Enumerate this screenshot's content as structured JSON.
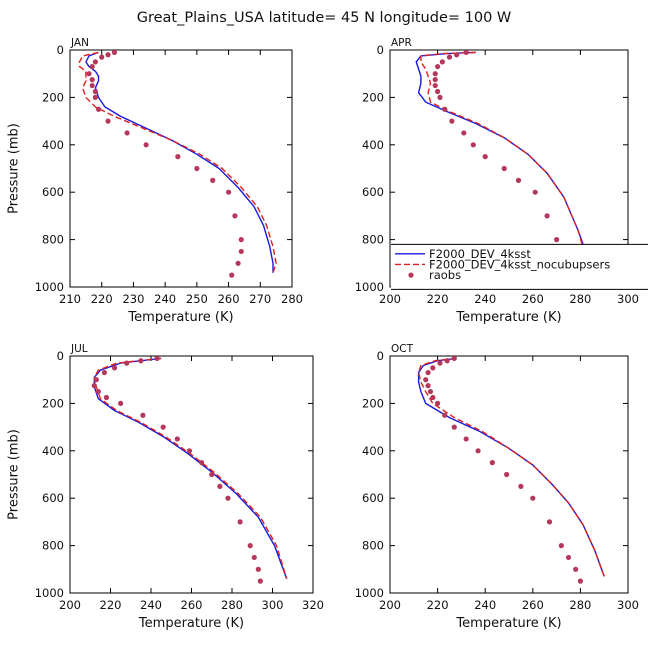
{
  "figure": {
    "title": "Great_Plains_USA  latitude= 45 N longitude= 100 W"
  },
  "colors": {
    "model": "#1a1ae0",
    "model_nocubup": "#e0201c",
    "obs": "#b5375a"
  },
  "chart_data": [
    {
      "type": "line",
      "panel": "JAN",
      "xlabel": "Temperature (K)",
      "ylabel": "Pressure (mb)",
      "xlim": [
        210,
        280
      ],
      "ylim": [
        1000,
        0
      ],
      "xticks": [
        210,
        220,
        230,
        240,
        250,
        260,
        270,
        280
      ],
      "yticks": [
        0,
        200,
        400,
        600,
        800,
        1000
      ],
      "series": [
        {
          "name": "F2000_DEV_4ksst",
          "style": "solid",
          "x": [
            219,
            216,
            215,
            216,
            218,
            219,
            219,
            218,
            219,
            221,
            226,
            234,
            242,
            250,
            257,
            263,
            268,
            271,
            273,
            274,
            274
          ],
          "y": [
            10,
            25,
            50,
            70,
            90,
            110,
            130,
            160,
            200,
            240,
            280,
            330,
            380,
            440,
            500,
            580,
            660,
            740,
            830,
            900,
            940
          ]
        },
        {
          "name": "F2000_DEV_4ksst_nocubupsers",
          "style": "dashed",
          "x": [
            219,
            214,
            213,
            213,
            215,
            215,
            215,
            214,
            215,
            218,
            224,
            233,
            242,
            251,
            258,
            264,
            269,
            272,
            274,
            275,
            274
          ],
          "y": [
            10,
            25,
            50,
            70,
            90,
            110,
            130,
            160,
            200,
            240,
            280,
            330,
            380,
            440,
            500,
            580,
            660,
            740,
            830,
            900,
            940
          ]
        },
        {
          "name": "raobs",
          "style": "dots",
          "x": [
            224,
            222,
            220,
            218,
            217,
            216,
            217,
            217,
            218,
            218,
            219,
            222,
            228,
            234,
            244,
            250,
            255,
            260,
            262,
            264,
            264,
            263,
            261
          ],
          "y": [
            10,
            20,
            30,
            50,
            70,
            100,
            125,
            150,
            175,
            200,
            250,
            300,
            350,
            400,
            450,
            500,
            550,
            600,
            700,
            800,
            850,
            900,
            950
          ]
        }
      ]
    },
    {
      "type": "line",
      "panel": "APR",
      "xlabel": "Temperature (K)",
      "ylabel": "",
      "xlim": [
        200,
        300
      ],
      "ylim": [
        1000,
        0
      ],
      "xticks": [
        200,
        220,
        240,
        260,
        280,
        300
      ],
      "yticks": [
        0,
        200,
        400,
        600,
        800,
        1000
      ],
      "legend": {
        "placement": "lower-right",
        "entries": [
          "F2000_DEV_4ksst",
          "F2000_DEV_4ksst_nocubupsers",
          "raobs"
        ]
      },
      "series": [
        {
          "name": "F2000_DEV_4ksst",
          "style": "solid",
          "x": [
            236,
            224,
            213,
            211,
            212,
            213,
            213,
            212,
            215,
            224,
            236,
            248,
            258,
            266,
            273,
            279,
            284
          ],
          "y": [
            10,
            15,
            25,
            50,
            80,
            110,
            140,
            180,
            220,
            260,
            310,
            370,
            440,
            520,
            620,
            760,
            900
          ]
        },
        {
          "name": "F2000_DEV_4ksst_nocubupsers",
          "style": "dashed",
          "x": [
            236,
            222,
            213,
            213,
            215,
            216,
            217,
            216,
            217,
            225,
            237,
            248,
            258,
            266,
            273,
            279,
            283
          ],
          "y": [
            10,
            15,
            25,
            50,
            80,
            110,
            140,
            180,
            220,
            260,
            310,
            370,
            440,
            520,
            620,
            760,
            900
          ]
        },
        {
          "name": "raobs",
          "style": "dots",
          "x": [
            232,
            228,
            225,
            222,
            220,
            219,
            219,
            219,
            220,
            221,
            223,
            226,
            231,
            235,
            240,
            248,
            254,
            261,
            266,
            270,
            274,
            277,
            278
          ],
          "y": [
            10,
            20,
            30,
            50,
            70,
            100,
            125,
            150,
            175,
            200,
            250,
            300,
            350,
            400,
            450,
            500,
            550,
            600,
            700,
            800,
            850,
            900,
            950
          ]
        }
      ]
    },
    {
      "type": "line",
      "panel": "JUL",
      "xlabel": "Temperature (K)",
      "ylabel": "Pressure (mb)",
      "xlim": [
        200,
        320
      ],
      "ylim": [
        1000,
        0
      ],
      "xticks": [
        200,
        220,
        240,
        260,
        280,
        300,
        320
      ],
      "yticks": [
        0,
        200,
        400,
        600,
        800,
        1000
      ],
      "series": [
        {
          "name": "F2000_DEV_4ksst",
          "style": "solid",
          "x": [
            245,
            225,
            215,
            212,
            212,
            214,
            222,
            234,
            246,
            258,
            270,
            282,
            293,
            301,
            307
          ],
          "y": [
            10,
            30,
            60,
            90,
            130,
            180,
            230,
            280,
            340,
            410,
            490,
            580,
            680,
            800,
            940
          ]
        },
        {
          "name": "F2000_DEV_4ksst_nocubupsers",
          "style": "dashed",
          "x": [
            245,
            223,
            214,
            212,
            213,
            215,
            223,
            235,
            247,
            259,
            271,
            283,
            294,
            302,
            307
          ],
          "y": [
            10,
            30,
            60,
            90,
            130,
            180,
            230,
            280,
            340,
            410,
            490,
            580,
            680,
            800,
            940
          ]
        },
        {
          "name": "raobs",
          "style": "dots",
          "x": [
            243,
            235,
            228,
            222,
            217,
            213,
            212,
            214,
            218,
            225,
            236,
            246,
            253,
            259,
            265,
            270,
            274,
            278,
            284,
            289,
            291,
            293,
            294
          ],
          "y": [
            10,
            20,
            30,
            50,
            70,
            100,
            125,
            150,
            175,
            200,
            250,
            300,
            350,
            400,
            450,
            500,
            550,
            600,
            700,
            800,
            850,
            900,
            950
          ]
        }
      ]
    },
    {
      "type": "line",
      "panel": "OCT",
      "xlabel": "Temperature (K)",
      "ylabel": "",
      "xlim": [
        200,
        300
      ],
      "ylim": [
        1000,
        0
      ],
      "xticks": [
        200,
        220,
        240,
        260,
        280,
        300
      ],
      "yticks": [
        0,
        200,
        400,
        600,
        800,
        1000
      ],
      "series": [
        {
          "name": "F2000_DEV_4ksst",
          "style": "solid",
          "x": [
            228,
            220,
            214,
            212,
            212,
            213,
            215,
            225,
            238,
            250,
            260,
            268,
            275,
            281,
            286,
            290
          ],
          "y": [
            10,
            20,
            40,
            70,
            110,
            150,
            200,
            260,
            320,
            390,
            460,
            540,
            620,
            710,
            820,
            930
          ]
        },
        {
          "name": "F2000_DEV_4ksst_nocubupsers",
          "style": "dashed",
          "x": [
            228,
            219,
            213,
            212,
            213,
            215,
            218,
            227,
            239,
            250,
            260,
            268,
            275,
            281,
            286,
            290
          ],
          "y": [
            10,
            20,
            40,
            70,
            110,
            150,
            200,
            260,
            320,
            390,
            460,
            540,
            620,
            710,
            820,
            930
          ]
        },
        {
          "name": "raobs",
          "style": "dots",
          "x": [
            227,
            224,
            221,
            218,
            216,
            215,
            216,
            217,
            218,
            220,
            223,
            227,
            232,
            237,
            243,
            249,
            255,
            260,
            267,
            272,
            275,
            278,
            280
          ],
          "y": [
            10,
            20,
            30,
            50,
            70,
            100,
            125,
            150,
            175,
            200,
            250,
            300,
            350,
            400,
            450,
            500,
            550,
            600,
            700,
            800,
            850,
            900,
            950
          ]
        }
      ]
    }
  ]
}
